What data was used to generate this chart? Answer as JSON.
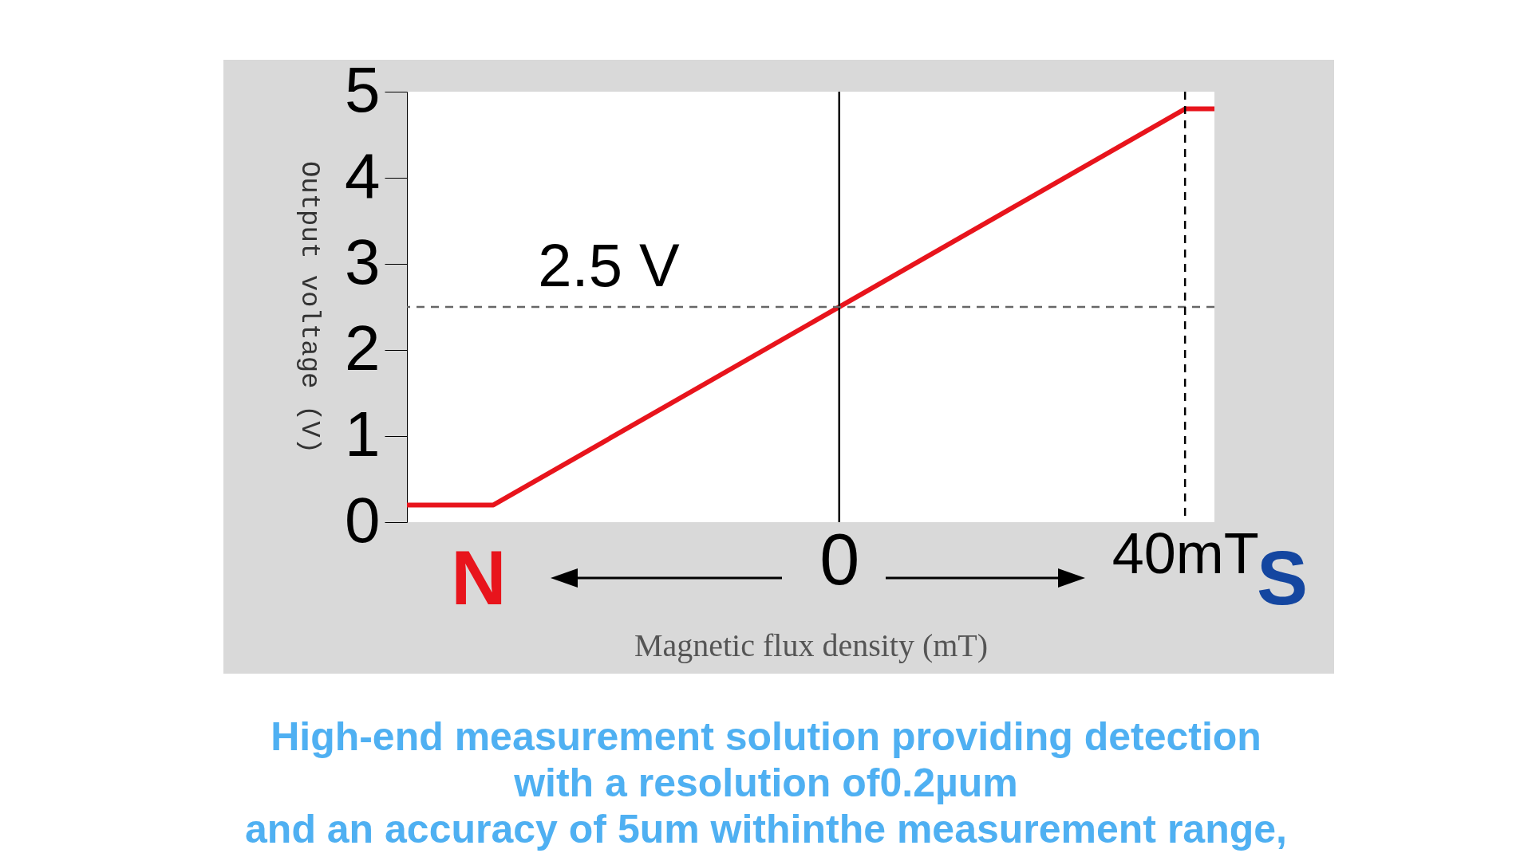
{
  "chart_data": {
    "type": "line",
    "ylabel": "Output voltage (V)",
    "xlabel": "Magnetic flux density (mT)",
    "x": [
      -50,
      -40,
      40,
      43.4
    ],
    "series": [
      {
        "color": "#e8141c",
        "values": [
          0.2,
          0.2,
          4.8,
          4.8
        ]
      }
    ],
    "xlim": [
      -50,
      43.4
    ],
    "xticks": [
      0,
      {
        "value": 40,
        "label": "40mT"
      }
    ],
    "ylim": [
      0,
      5
    ],
    "yticks": [
      0,
      1,
      2,
      3,
      4,
      5
    ],
    "ref_lines": [
      {
        "axis": "x",
        "value": 0,
        "color": "#000000",
        "line_style": "solid"
      },
      {
        "axis": "y",
        "value": 2.5,
        "label": "2.5 V",
        "color": "#666666",
        "line_style": "dashed"
      },
      {
        "axis": "x",
        "value": 40,
        "color": "#000000",
        "line_style": "dashed"
      }
    ],
    "annotations": [
      "N",
      "S",
      "High-end measurement solution providing detection",
      "with a resolution of0.2µum",
      "and an accuracy of 5um withinthe measurement range,"
    ],
    "grid": false,
    "marker": "none",
    "line_style": "solid"
  }
}
